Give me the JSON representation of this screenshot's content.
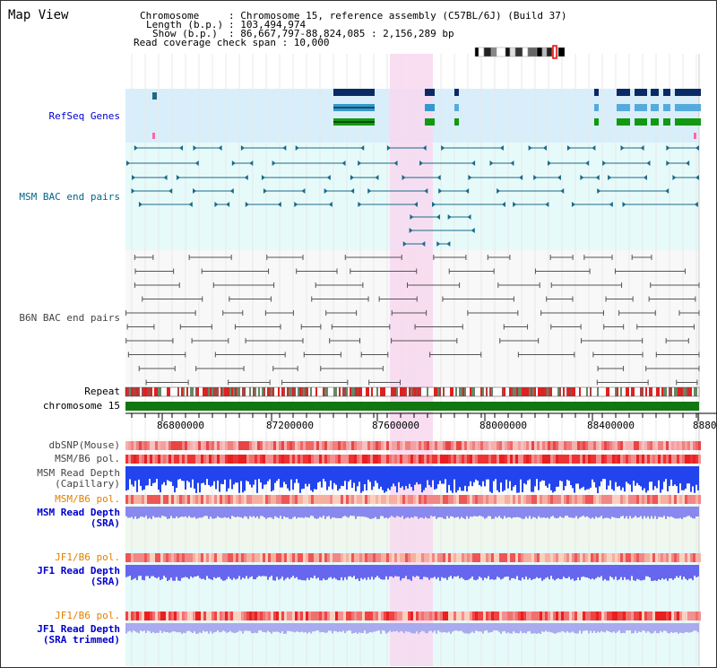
{
  "title": "Map View",
  "header": {
    "chromosome_key": "Chromosome",
    "chromosome_val": ": Chromosome 15, reference assembly (C57BL/6J) (Build 37)",
    "length_key": "Length (b.p.)",
    "length_val": ": 103,494,974",
    "show_key": "Show (b.p.)",
    "show_val": ": 86,667,797-88,824,085 : 2,156,289 bp",
    "coverage": "Read coverage check span : 10,000"
  },
  "tracks": {
    "refseq": "RefSeq Genes",
    "msm_bac": "MSM BAC end pairs",
    "b6n_bac": "B6N BAC end pairs",
    "repeat": "Repeat",
    "chromosome": "chromosome 15",
    "dbsnp": "dbSNP(Mouse)",
    "msm_b6_pol": "MSM/B6 pol.",
    "msm_depth_cap_1": "MSM Read Depth",
    "msm_depth_cap_2": "(Capillary)",
    "msm_b6_pol2": "MSM/B6 pol.",
    "msm_depth_sra_1": "MSM Read Depth",
    "msm_depth_sra_2": "(SRA)",
    "jf1_b6_pol": "JF1/B6 pol.",
    "jf1_depth_1": "JF1 Read Depth",
    "jf1_depth_2": "(SRA)",
    "jf1_b6_pol2": "JF1/B6 pol.",
    "jf1_depth_tr_1": "JF1 Read Depth",
    "jf1_depth_tr_2": "(SRA trimmed)"
  },
  "axis_ticks": [
    "86800000",
    "87200000",
    "87600000",
    "88000000",
    "88400000",
    "8880"
  ],
  "colors": {
    "label_blue": "#0000cc",
    "label_teal": "#006688",
    "label_gray": "#444444",
    "label_orange": "#e08000",
    "highlight": "#f8d8f0"
  }
}
